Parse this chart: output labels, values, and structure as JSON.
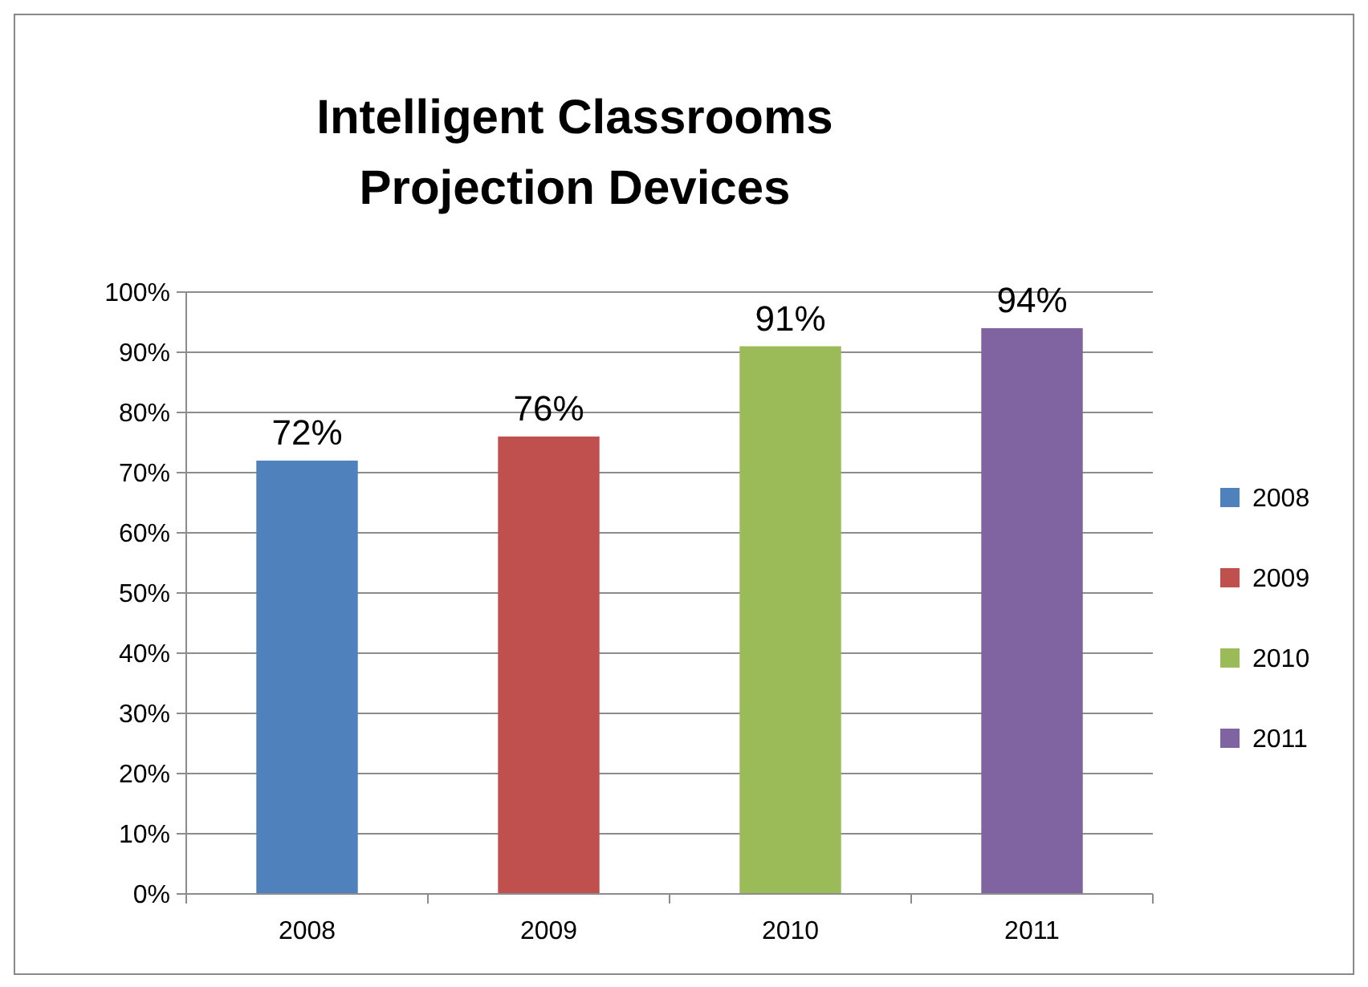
{
  "chart_data": {
    "type": "bar",
    "title": "Intelligent Classrooms\nProjection Devices",
    "categories": [
      "2008",
      "2009",
      "2010",
      "2011"
    ],
    "stacked": true,
    "series": [
      {
        "name": "2008",
        "color": "#4f81bd",
        "values": [
          72,
          null,
          null,
          null
        ],
        "value_labels": [
          "72%",
          null,
          null,
          null
        ]
      },
      {
        "name": "2009",
        "color": "#c0504d",
        "values": [
          null,
          76,
          null,
          null
        ],
        "value_labels": [
          null,
          "76%",
          null,
          null
        ]
      },
      {
        "name": "2010",
        "color": "#9bbb59",
        "values": [
          null,
          null,
          91,
          null
        ],
        "value_labels": [
          null,
          null,
          "91%",
          null
        ]
      },
      {
        "name": "2011",
        "color": "#8064a2",
        "values": [
          null,
          null,
          null,
          94
        ],
        "value_labels": [
          null,
          null,
          null,
          "94%"
        ]
      }
    ],
    "ylim": [
      0,
      100
    ],
    "yticks": [
      {
        "value": 0,
        "label": "0%"
      },
      {
        "value": 10,
        "label": "10%"
      },
      {
        "value": 20,
        "label": "20%"
      },
      {
        "value": 30,
        "label": "30%"
      },
      {
        "value": 40,
        "label": "40%"
      },
      {
        "value": 50,
        "label": "50%"
      },
      {
        "value": 60,
        "label": "60%"
      },
      {
        "value": 70,
        "label": "70%"
      },
      {
        "value": 80,
        "label": "80%"
      },
      {
        "value": 90,
        "label": "90%"
      },
      {
        "value": 100,
        "label": "100%"
      }
    ],
    "grid": "y",
    "legend": "right"
  }
}
